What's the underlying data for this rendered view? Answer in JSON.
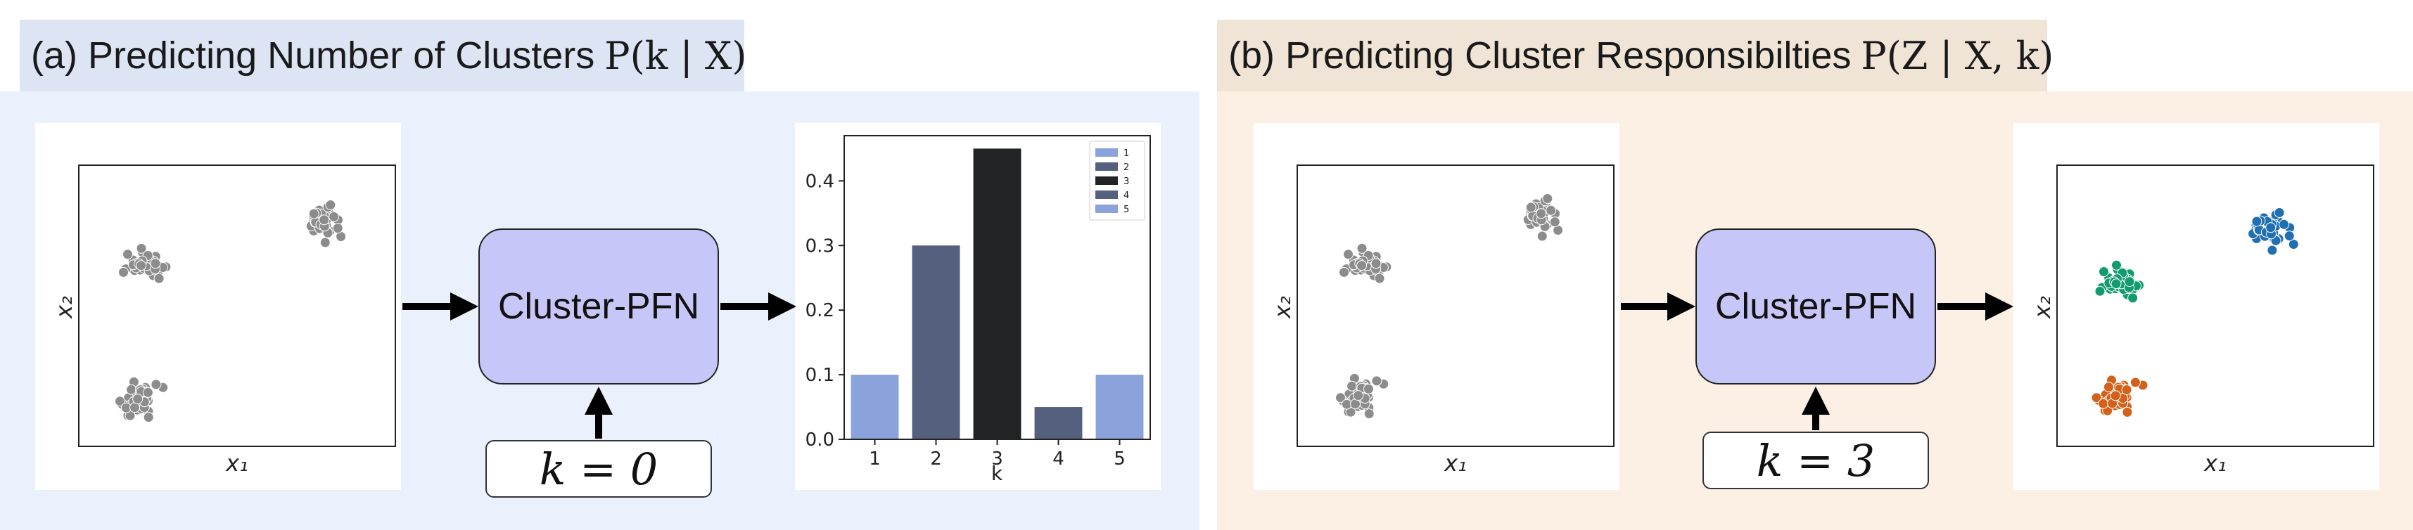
{
  "panel_a": {
    "title": "(a) Predicting Number of Clusters",
    "math": "P(k | X)",
    "model_label": "Cluster-PFN",
    "k_input": "k = 0",
    "scatter": {
      "xlabel": "x₁",
      "ylabel": "x₂"
    }
  },
  "panel_b": {
    "title": "(b) Predicting Cluster Responsibilties",
    "math": "P(Z | X, k)",
    "model_label": "Cluster-PFN",
    "k_input": "k = 3",
    "scatter_in": {
      "xlabel": "x₁",
      "ylabel": "x₂"
    },
    "scatter_out": {
      "xlabel": "x₁",
      "ylabel": "x₂"
    }
  },
  "colors": {
    "panel_a_bg": "#eaf1fc",
    "panel_a_tab": "#dde5f5",
    "panel_b_bg": "#fcefe3",
    "panel_b_tab": "#f0e4d6",
    "points_gray": "#8c8c8c",
    "cluster_blue": "#1f6fb2",
    "cluster_green": "#129b6f",
    "cluster_orange": "#d2611a"
  },
  "chart_data": {
    "type": "bar",
    "categories": [
      "1",
      "2",
      "3",
      "4",
      "5"
    ],
    "values": [
      0.1,
      0.3,
      0.45,
      0.05,
      0.1
    ],
    "colors": [
      "#8aa3db",
      "#54607e",
      "#222325",
      "#54607e",
      "#8aa3db"
    ],
    "xlabel": "k",
    "ylabel": "",
    "ylim": [
      0,
      0.47
    ],
    "yticks": [
      "0.0",
      "0.1",
      "0.2",
      "0.3",
      "0.4"
    ],
    "ytick_values": [
      0,
      0.1,
      0.2,
      0.3,
      0.4
    ],
    "legend": {
      "placement": "top-right",
      "entries": [
        "1",
        "2",
        "3",
        "4",
        "5"
      ],
      "colors": [
        "#8aa3db",
        "#54607e",
        "#222325",
        "#54607e",
        "#8aa3db"
      ]
    }
  }
}
